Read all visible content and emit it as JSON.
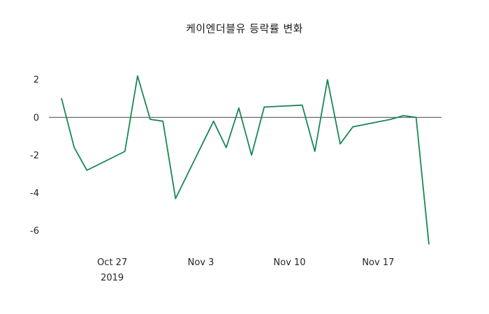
{
  "title": "케이엔더블유 등락률 변화",
  "chart_data": {
    "type": "line",
    "title": "케이엔더블유 등락률 변화",
    "xlabel": "",
    "ylabel": "",
    "line_color": "#1a8754",
    "zero_line": true,
    "zero_line_color": "#404040",
    "grid": false,
    "legend": "none",
    "ylim": [
      -7.2,
      2.6
    ],
    "yticks": [
      2,
      0,
      -2,
      -4,
      -6
    ],
    "xlim": [
      "2019-10-22",
      "2019-11-22"
    ],
    "xticks": [
      {
        "date": "2019-10-27",
        "label": "Oct 27",
        "sublabel": "2019"
      },
      {
        "date": "2019-11-03",
        "label": "Nov 3",
        "sublabel": ""
      },
      {
        "date": "2019-11-10",
        "label": "Nov 10",
        "sublabel": ""
      },
      {
        "date": "2019-11-17",
        "label": "Nov 17",
        "sublabel": ""
      }
    ],
    "series": [
      {
        "name": "등락률",
        "points": [
          [
            "2019-10-23",
            1.0
          ],
          [
            "2019-10-24",
            -1.6
          ],
          [
            "2019-10-25",
            -2.8
          ],
          [
            "2019-10-28",
            -1.8
          ],
          [
            "2019-10-29",
            2.2
          ],
          [
            "2019-10-30",
            -0.1
          ],
          [
            "2019-10-31",
            -0.2
          ],
          [
            "2019-11-01",
            -4.3
          ],
          [
            "2019-11-04",
            -0.2
          ],
          [
            "2019-11-05",
            -1.6
          ],
          [
            "2019-11-06",
            0.5
          ],
          [
            "2019-11-07",
            -2.0
          ],
          [
            "2019-11-08",
            0.55
          ],
          [
            "2019-11-11",
            0.65
          ],
          [
            "2019-11-12",
            -1.8
          ],
          [
            "2019-11-13",
            2.0
          ],
          [
            "2019-11-14",
            -1.4
          ],
          [
            "2019-11-15",
            -0.5
          ],
          [
            "2019-11-18",
            -0.1
          ],
          [
            "2019-11-19",
            0.1
          ],
          [
            "2019-11-20",
            0.0
          ],
          [
            "2019-11-21",
            -6.7
          ]
        ]
      }
    ]
  }
}
